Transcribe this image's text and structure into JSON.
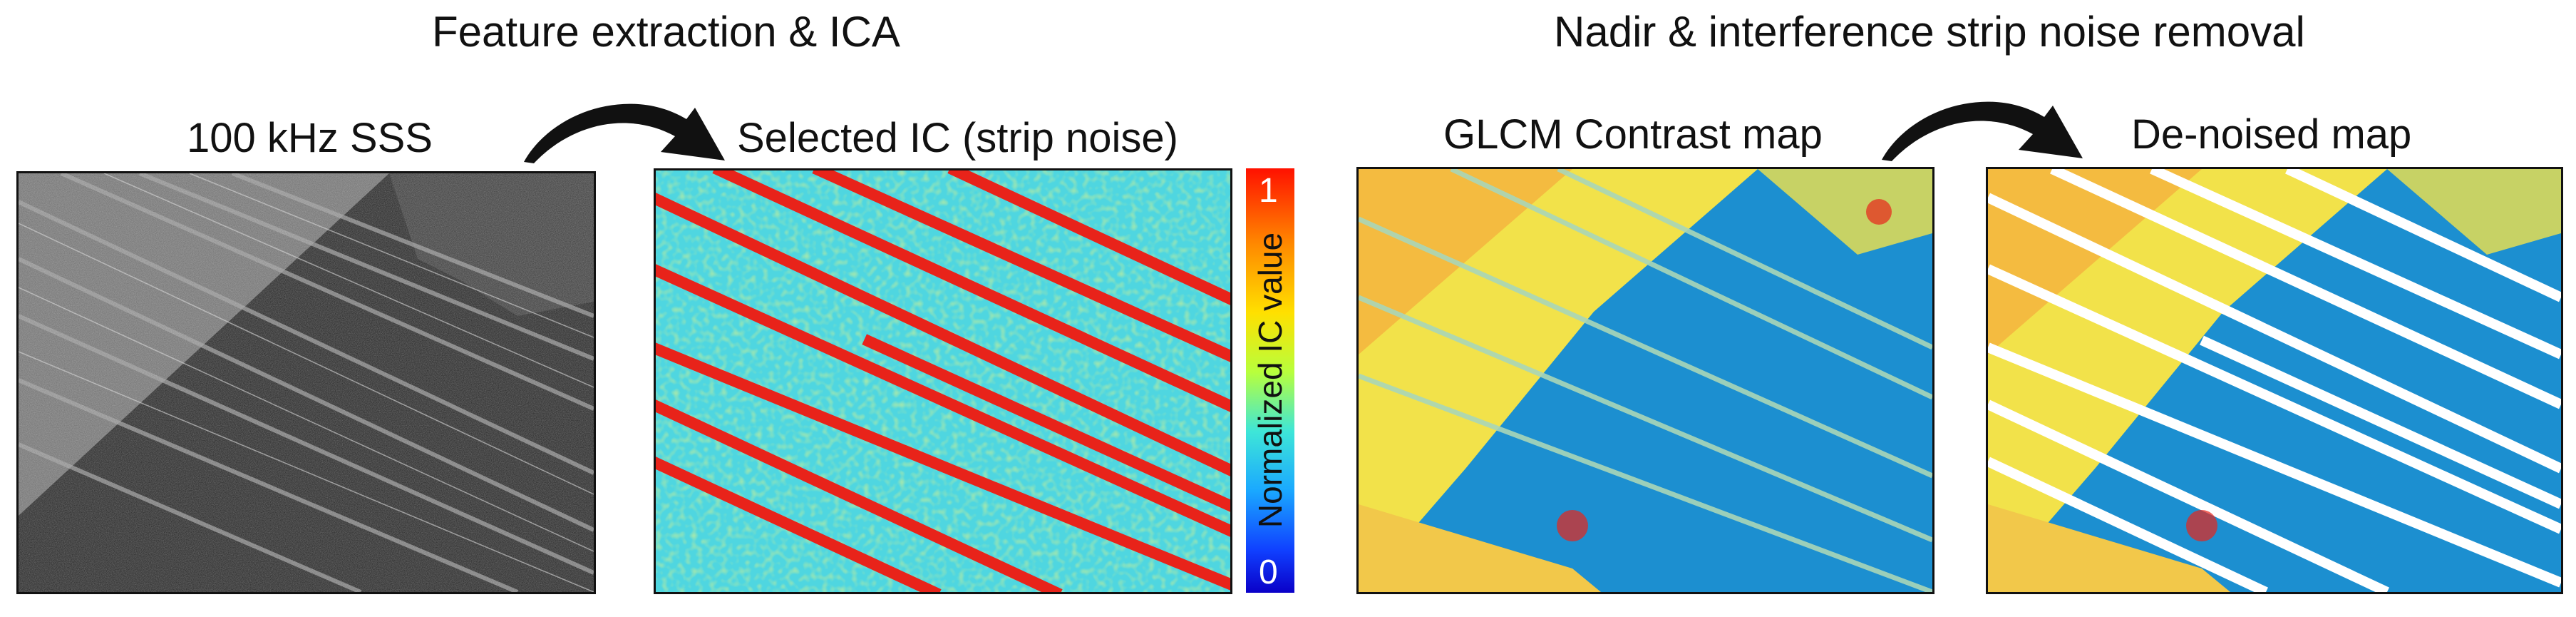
{
  "steps": {
    "step1": "Feature extraction & ICA",
    "step2": "Nadir & interference strip noise removal"
  },
  "panels": {
    "p1": "100 kHz SSS",
    "p2": "Selected IC (strip noise)",
    "p3": "GLCM Contrast map",
    "p4": "De-noised map"
  },
  "colorbar": {
    "label": "Normalized IC value",
    "max": "1",
    "min": "0"
  },
  "colors": {
    "noise_red": "#e8231a",
    "ocean_blue": "#1c8fd0",
    "cyan": "#4fd6e0",
    "yellow": "#f2e24a"
  }
}
